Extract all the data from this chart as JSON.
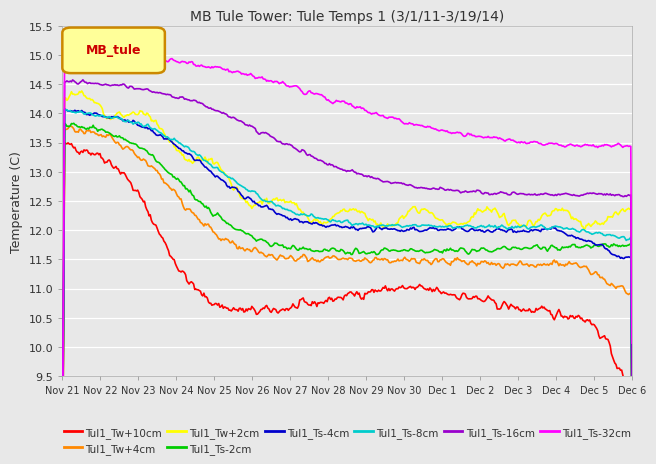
{
  "title": "MB Tule Tower: Tule Temps 1 (3/1/11-3/19/14)",
  "ylabel": "Temperature (C)",
  "ylim": [
    9.5,
    15.5
  ],
  "yticks": [
    9.5,
    10.0,
    10.5,
    11.0,
    11.5,
    12.0,
    12.5,
    13.0,
    13.5,
    14.0,
    14.5,
    15.0,
    15.5
  ],
  "xtick_labels": [
    "Nov 21",
    "Nov 22",
    "Nov 23",
    "Nov 24",
    "Nov 25",
    "Nov 26",
    "Nov 27",
    "Nov 28",
    "Nov 29",
    "Nov 30",
    "Dec 1",
    "Dec 2",
    "Dec 3",
    "Dec 4",
    "Dec 5",
    "Dec 6"
  ],
  "bg_color": "#e8e8e8",
  "series_colors": [
    "#ff0000",
    "#ff8800",
    "#ffff00",
    "#00cc00",
    "#0000cc",
    "#00cccc",
    "#9900cc",
    "#ff00ff"
  ],
  "series_labels": [
    "Tul1_Tw+10cm",
    "Tul1_Tw+4cm",
    "Tul1_Tw+2cm",
    "Tul1_Ts-2cm",
    "Tul1_Ts-4cm",
    "Tul1_Ts-8cm",
    "Tul1_Ts-16cm",
    "Tul1_Ts-32cm"
  ],
  "legend_label": "MB_tule"
}
